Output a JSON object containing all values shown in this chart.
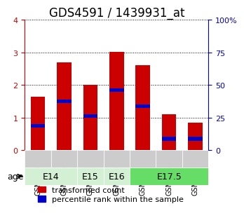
{
  "title": "GDS4591 / 1439931_at",
  "samples": [
    "GSM936403",
    "GSM936404",
    "GSM936405",
    "GSM936402",
    "GSM936400",
    "GSM936401",
    "GSM936406"
  ],
  "bar_values": [
    1.65,
    2.7,
    2.0,
    3.02,
    2.6,
    1.1,
    0.85
  ],
  "percentile_values": [
    0.75,
    1.5,
    1.05,
    1.85,
    1.35,
    0.35,
    0.35
  ],
  "bar_color": "#cc0000",
  "percentile_color": "#0000cc",
  "ylim_left": [
    0,
    4
  ],
  "ylim_right": [
    0,
    100
  ],
  "yticks_left": [
    0,
    1,
    2,
    3,
    4
  ],
  "yticks_right": [
    0,
    25,
    50,
    75,
    100
  ],
  "ytick_labels_right": [
    "0",
    "25",
    "50",
    "75",
    "100%"
  ],
  "age_groups": [
    {
      "label": "E14",
      "start": 0,
      "end": 2,
      "color": "#d4f0d4"
    },
    {
      "label": "E15",
      "start": 2,
      "end": 3,
      "color": "#d4f0d4"
    },
    {
      "label": "E16",
      "start": 3,
      "end": 4,
      "color": "#d4f0d4"
    },
    {
      "label": "E17.5",
      "start": 4,
      "end": 7,
      "color": "#66dd66"
    }
  ],
  "sample_bg_color": "#cccccc",
  "age_label": "age",
  "legend_red_label": "transformed count",
  "legend_blue_label": "percentile rank within the sample",
  "bar_width": 0.55,
  "grid_color": "#000000",
  "title_fontsize": 12,
  "axis_fontsize": 9,
  "tick_fontsize": 8,
  "legend_fontsize": 8
}
